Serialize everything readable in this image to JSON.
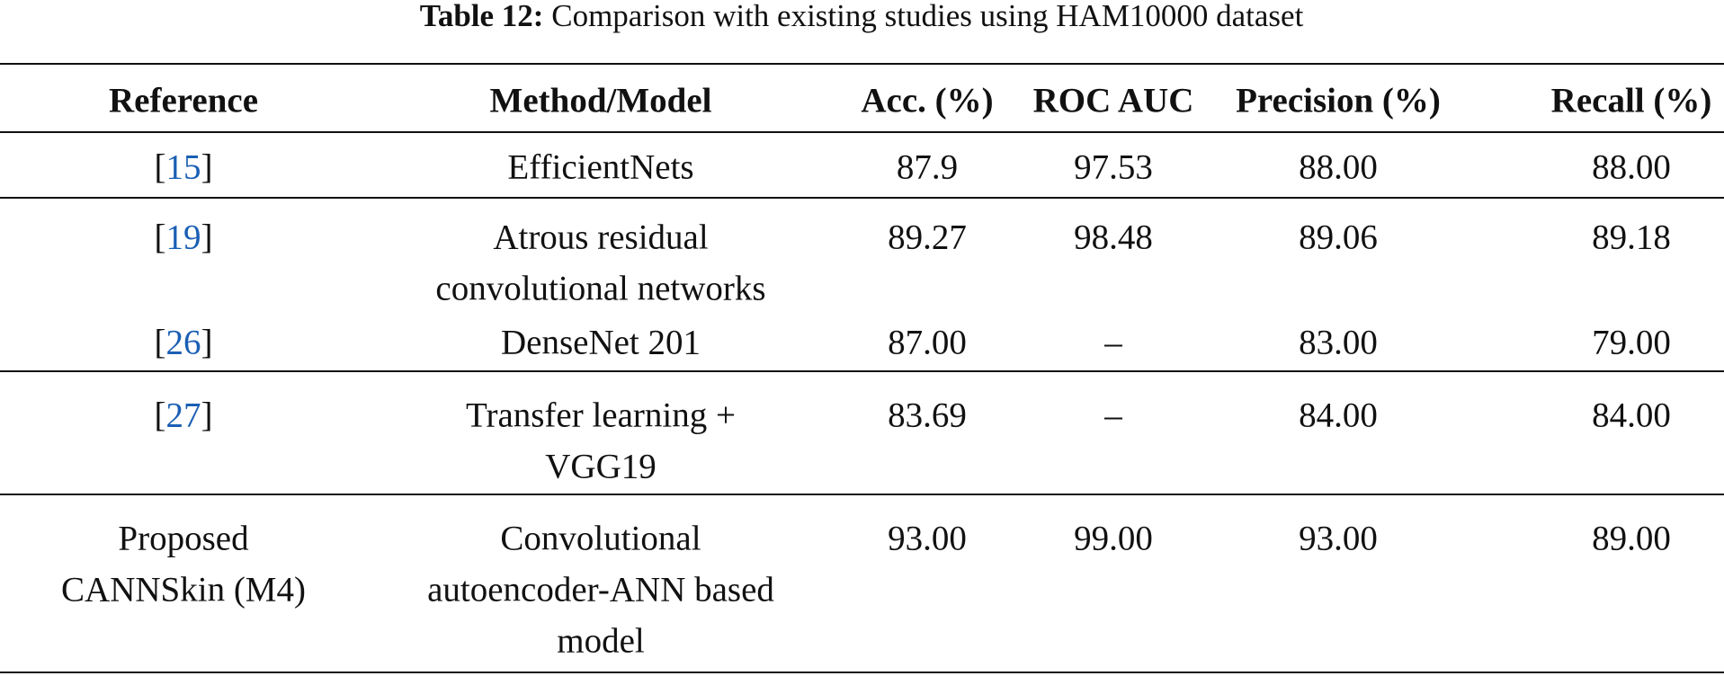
{
  "caption": {
    "label": "Table 12:",
    "text": "Comparison with existing studies using HAM10000 dataset"
  },
  "table": {
    "headers": [
      "Reference",
      "Method/Model",
      "Acc. (%)",
      "ROC AUC",
      "Precision (%)",
      "Recall (%)"
    ],
    "rows": [
      {
        "reference": {
          "cite": [
            "[",
            "15",
            "]"
          ]
        },
        "method": [
          "EfficientNets"
        ],
        "values": [
          "87.9",
          "97.53",
          "88.00",
          "88.00"
        ]
      },
      {
        "reference": {
          "cite": [
            "[",
            "19",
            "]"
          ]
        },
        "method": [
          "Atrous residual",
          "convolutional networks"
        ],
        "values": [
          "89.27",
          "98.48",
          "89.06",
          "89.18"
        ]
      },
      {
        "reference": {
          "cite": [
            "[",
            "26",
            "]"
          ]
        },
        "method": [
          "DenseNet 201"
        ],
        "values": [
          "87.00",
          "–",
          "83.00",
          "79.00"
        ]
      },
      {
        "reference": {
          "cite": [
            "[",
            "27",
            "]"
          ]
        },
        "method": [
          "Transfer learning +",
          "VGG19"
        ],
        "values": [
          "83.69",
          "–",
          "84.00",
          "84.00"
        ]
      },
      {
        "reference": {
          "lines": [
            "Proposed",
            "CANNSkin (M4)"
          ]
        },
        "method": [
          "Convolutional",
          "autoencoder-ANN based",
          "model"
        ],
        "values": [
          "93.00",
          "99.00",
          "93.00",
          "89.00"
        ]
      }
    ]
  }
}
